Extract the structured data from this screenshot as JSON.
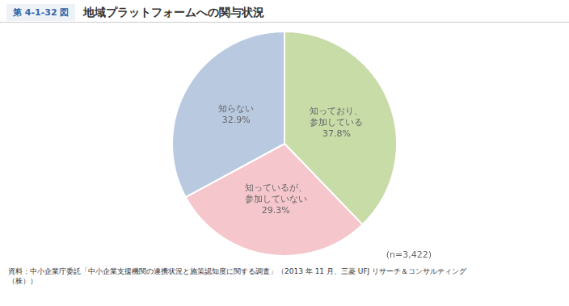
{
  "chart_data": {
    "type": "pie",
    "title": "地域プラットフォームへの関与状況",
    "annotations": [
      "第 4-1-32 図",
      "(n=3,422)",
      "資料：中小企業庁委託「中小企業支援機関の連携状況と施策認知度に関する調査」（2013 年 11 月、三菱 UFJ リサーチ＆コンサルティング\n（株））"
    ],
    "categories": [
      "知っており、\n参加している",
      "知っているが、\n参加していない",
      "知らない"
    ],
    "values": [
      37.8,
      29.3,
      32.9
    ],
    "value_labels": [
      "37.8%",
      "29.3%",
      "32.9%"
    ],
    "colors": [
      "#c8dca8",
      "#f5c6cc",
      "#b8c9e0"
    ],
    "data_labels": true,
    "legend": false
  }
}
